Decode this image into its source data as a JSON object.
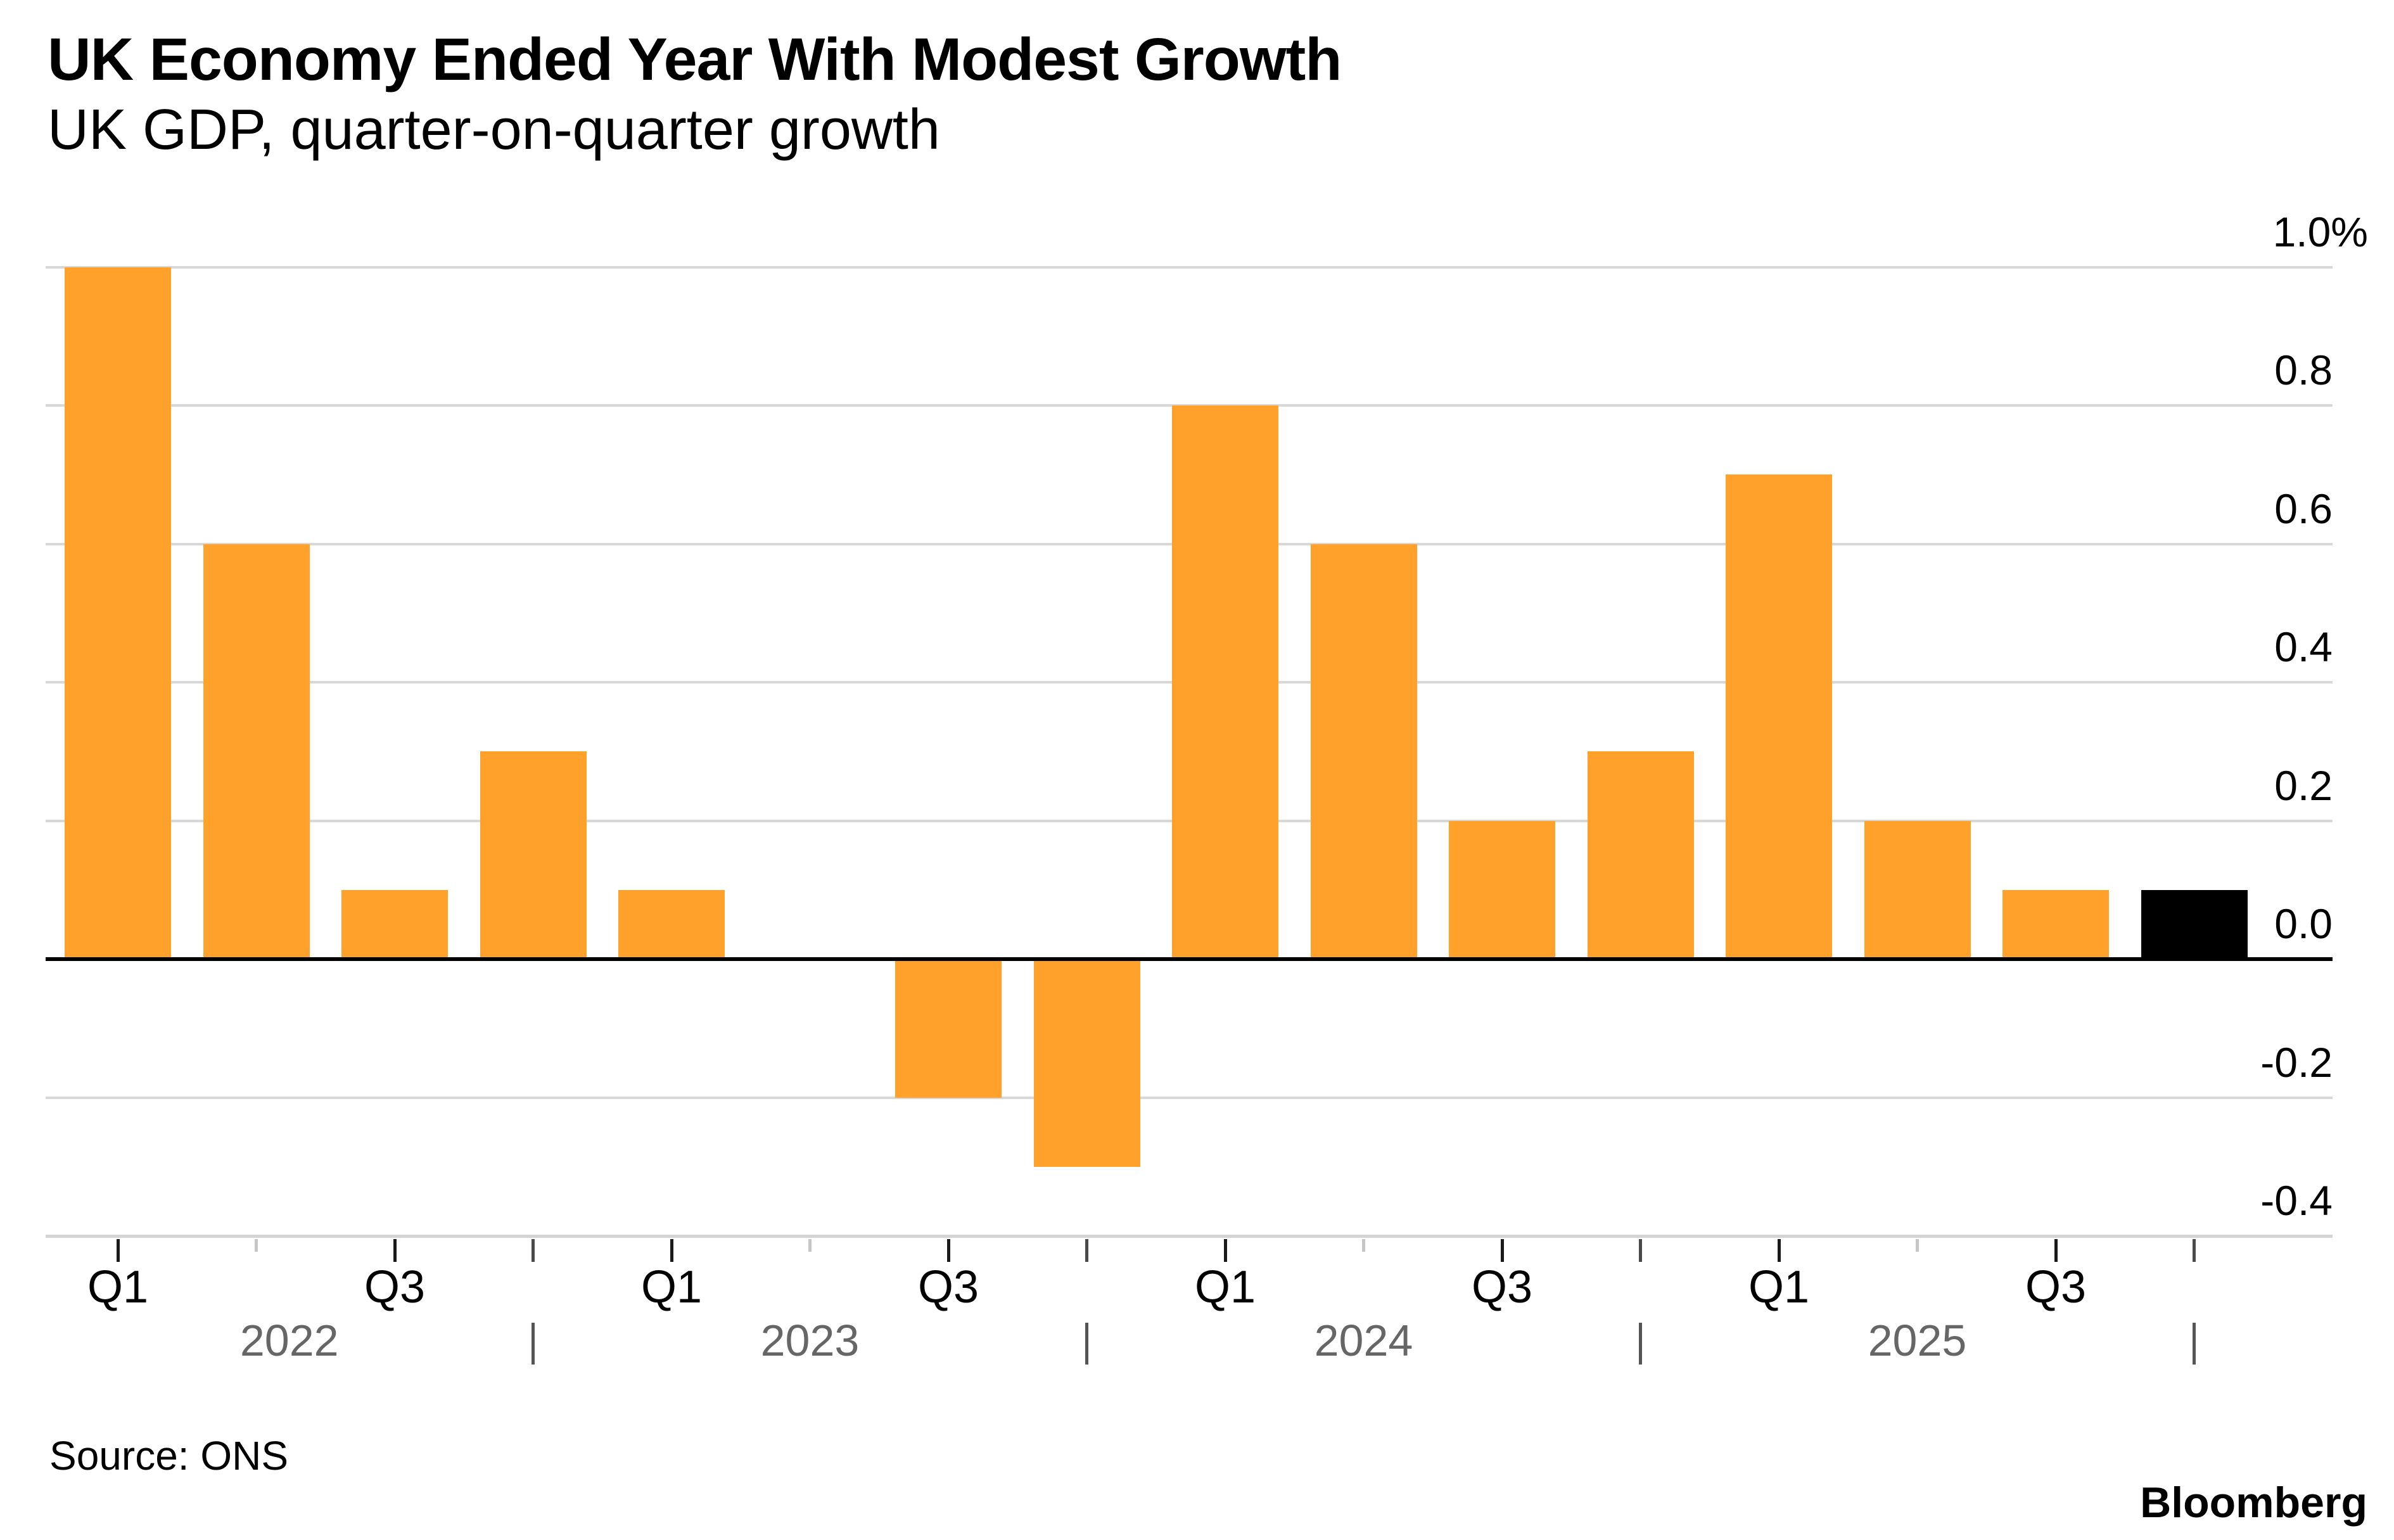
{
  "header": {
    "title": "UK Economy Ended Year With Modest Growth",
    "subtitle": "UK GDP, quarter-on-quarter growth"
  },
  "footer": {
    "source": "Source: ONS",
    "brand": "Bloomberg"
  },
  "chart_data": {
    "type": "bar",
    "title": "UK Economy Ended Year With Modest Growth",
    "subtitle": "UK GDP, quarter-on-quarter growth",
    "unit": "%",
    "categories": [
      "Q1 2022",
      "Q2 2022",
      "Q3 2022",
      "Q4 2022",
      "Q1 2023",
      "Q2 2023",
      "Q3 2023",
      "Q4 2023",
      "Q1 2024",
      "Q2 2024",
      "Q3 2024",
      "Q4 2024",
      "Q1 2025",
      "Q2 2025",
      "Q3 2025",
      "Q4 2025"
    ],
    "values": [
      1.0,
      0.6,
      0.1,
      0.3,
      0.1,
      0.0,
      -0.2,
      -0.3,
      0.8,
      0.6,
      0.2,
      0.3,
      0.7,
      0.2,
      0.1,
      0.1
    ],
    "xtick_labels": [
      "Q1",
      "",
      "Q3",
      "",
      "Q1",
      "",
      "Q3",
      "",
      "Q1",
      "",
      "Q3",
      "",
      "Q1",
      "",
      "Q3",
      ""
    ],
    "years": [
      "2022",
      "2023",
      "2024",
      "2025"
    ],
    "yticks": [
      {
        "label": "1.0%",
        "value": 1.0
      },
      {
        "label": "0.8",
        "value": 0.8
      },
      {
        "label": "0.6",
        "value": 0.6
      },
      {
        "label": "0.4",
        "value": 0.4
      },
      {
        "label": "0.2",
        "value": 0.2
      },
      {
        "label": "0.0",
        "value": 0.0
      },
      {
        "label": "-0.2",
        "value": -0.2
      },
      {
        "label": "-0.4",
        "value": -0.4
      }
    ],
    "ylim": [
      -0.4,
      1.0
    ],
    "grid": true,
    "legend": false,
    "highlight_index": 15,
    "colors": {
      "bar": "#FFA12A",
      "highlight_bar": "#000000",
      "gridline": "#D8D8D8",
      "baseline": "#000000",
      "axis_line": "#D4D4D4",
      "tick_major": "#1A1A1A",
      "tick_minor": "#C6C6C6",
      "tick_q4": "#4A4A4A",
      "year_separator": "#555555",
      "year_label": "#666666"
    }
  }
}
